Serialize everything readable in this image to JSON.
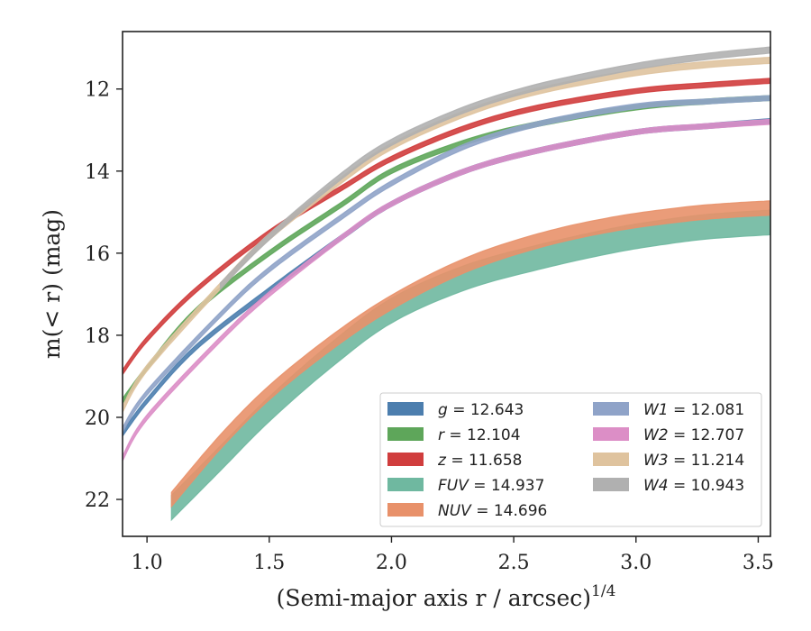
{
  "chart_data": {
    "type": "line",
    "title": "",
    "xlabel": "(Semi-major axis r / arcsec)",
    "xlabel_exponent": "1/4",
    "ylabel": "m(< r) (mag)",
    "xlim": [
      0.9,
      3.55
    ],
    "ylim": [
      22.9,
      10.6
    ],
    "y_inverted": true,
    "xticks": [
      1.0,
      1.5,
      2.0,
      2.5,
      3.0,
      3.5
    ],
    "xtick_labels": [
      "1.0",
      "1.5",
      "2.0",
      "2.5",
      "3.0",
      "3.5"
    ],
    "yticks": [
      12,
      14,
      16,
      18,
      20,
      22
    ],
    "ytick_labels": [
      "12",
      "14",
      "16",
      "18",
      "20",
      "22"
    ],
    "grid": false,
    "legend_position": "lower-right",
    "series": [
      {
        "name": "g = 12.643",
        "label_var": "g",
        "label_val": "= 12.643",
        "color": "#4c7eae",
        "band": 0.12,
        "x": [
          0.9,
          1.0,
          1.2,
          1.5,
          1.8,
          2.0,
          2.3,
          2.6,
          3.0,
          3.3,
          3.55
        ],
        "y": [
          20.4,
          19.6,
          18.3,
          16.9,
          15.6,
          14.8,
          14.0,
          13.5,
          13.05,
          12.9,
          12.78
        ]
      },
      {
        "name": "r = 12.104",
        "label_var": "r",
        "label_val": "= 12.104",
        "color": "#5ea65a",
        "band": 0.12,
        "x": [
          0.9,
          1.0,
          1.2,
          1.5,
          1.8,
          2.0,
          2.3,
          2.6,
          3.0,
          3.3,
          3.55
        ],
        "y": [
          19.6,
          18.8,
          17.4,
          16.0,
          14.8,
          14.0,
          13.3,
          12.85,
          12.45,
          12.3,
          12.22
        ]
      },
      {
        "name": "z = 11.658",
        "label_var": "z",
        "label_val": "= 11.658",
        "color": "#d03d3d",
        "band": 0.12,
        "x": [
          0.9,
          1.0,
          1.2,
          1.5,
          1.8,
          2.0,
          2.3,
          2.6,
          3.0,
          3.3,
          3.55
        ],
        "y": [
          18.9,
          18.1,
          16.9,
          15.5,
          14.4,
          13.7,
          12.95,
          12.45,
          12.05,
          11.9,
          11.8
        ]
      },
      {
        "name": "FUV = 14.937",
        "label_var": "FUV",
        "label_val": "= 14.937",
        "color": "#6fb8a0",
        "band": 0.6,
        "x": [
          1.1,
          1.3,
          1.5,
          1.75,
          2.0,
          2.3,
          2.6,
          2.9,
          3.1,
          3.3,
          3.55
        ],
        "y": [
          22.2,
          21.0,
          19.8,
          18.5,
          17.4,
          16.6,
          16.1,
          15.7,
          15.5,
          15.35,
          15.25
        ]
      },
      {
        "name": "NUV = 14.696",
        "label_var": "NUV",
        "label_val": "= 14.696",
        "color": "#e8916a",
        "band": 0.35,
        "x": [
          1.1,
          1.3,
          1.5,
          1.75,
          2.0,
          2.3,
          2.6,
          2.9,
          3.2,
          3.4,
          3.55
        ],
        "y": [
          22.0,
          20.6,
          19.4,
          18.2,
          17.2,
          16.3,
          15.7,
          15.3,
          15.05,
          14.95,
          14.9
        ]
      },
      {
        "name": "W1 = 12.081",
        "label_var": "W1",
        "label_val": "= 12.081",
        "color": "#8fa3c8",
        "band": 0.12,
        "x": [
          0.9,
          1.0,
          1.3,
          1.5,
          1.8,
          2.0,
          2.3,
          2.6,
          3.0,
          3.3,
          3.55
        ],
        "y": [
          20.3,
          19.4,
          17.5,
          16.4,
          15.1,
          14.3,
          13.4,
          12.85,
          12.42,
          12.3,
          12.22
        ]
      },
      {
        "name": "W2 = 12.707",
        "label_var": "W2",
        "label_val": "= 12.707",
        "color": "#dc8ec6",
        "band": 0.12,
        "x": [
          0.9,
          1.0,
          1.3,
          1.5,
          1.8,
          2.0,
          2.3,
          2.6,
          3.0,
          3.3,
          3.55
        ],
        "y": [
          21.0,
          20.0,
          18.1,
          17.0,
          15.6,
          14.8,
          14.0,
          13.5,
          13.05,
          12.9,
          12.8
        ]
      },
      {
        "name": "W3 = 11.214",
        "label_var": "W3",
        "label_val": "= 11.214",
        "color": "#dfc39e",
        "band": 0.15,
        "x": [
          0.9,
          1.0,
          1.3,
          1.5,
          1.8,
          2.0,
          2.3,
          2.6,
          3.0,
          3.3,
          3.55
        ],
        "y": [
          19.8,
          18.8,
          16.8,
          15.6,
          14.2,
          13.4,
          12.6,
          12.05,
          11.6,
          11.4,
          11.3
        ]
      },
      {
        "name": "W4 = 10.943",
        "label_var": "W4",
        "label_val": "= 10.943",
        "color": "#b0b0b0",
        "band": 0.15,
        "x": [
          1.3,
          1.5,
          1.8,
          2.0,
          2.3,
          2.6,
          3.0,
          3.3,
          3.55
        ],
        "y": [
          16.8,
          15.6,
          14.1,
          13.3,
          12.5,
          11.95,
          11.45,
          11.2,
          11.05
        ]
      }
    ]
  }
}
